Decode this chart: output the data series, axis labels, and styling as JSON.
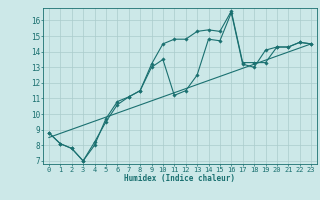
{
  "xlabel": "Humidex (Indice chaleur)",
  "background_color": "#cce8e8",
  "grid_color": "#aacccc",
  "line_color": "#1a7070",
  "xlim": [
    -0.5,
    23.5
  ],
  "ylim": [
    6.8,
    16.8
  ],
  "xticks": [
    0,
    1,
    2,
    3,
    4,
    5,
    6,
    7,
    8,
    9,
    10,
    11,
    12,
    13,
    14,
    15,
    16,
    17,
    18,
    19,
    20,
    21,
    22,
    23
  ],
  "yticks": [
    7,
    8,
    9,
    10,
    11,
    12,
    13,
    14,
    15,
    16
  ],
  "line1_x": [
    0,
    1,
    2,
    3,
    4,
    5,
    6,
    7,
    8,
    9,
    10,
    11,
    12,
    13,
    14,
    15,
    16,
    17,
    18,
    19,
    20,
    21,
    22,
    23
  ],
  "line1_y": [
    8.8,
    8.1,
    7.8,
    7.0,
    8.0,
    9.7,
    10.8,
    11.1,
    11.5,
    13.0,
    13.5,
    11.2,
    11.5,
    12.5,
    14.8,
    14.7,
    16.5,
    13.2,
    13.0,
    14.1,
    14.3,
    14.3,
    14.6,
    14.5
  ],
  "line2_x": [
    0,
    1,
    2,
    3,
    4,
    5,
    6,
    7,
    8,
    9,
    10,
    11,
    12,
    13,
    14,
    15,
    16,
    17,
    18,
    19,
    20,
    21,
    22,
    23
  ],
  "line2_y": [
    8.8,
    8.1,
    7.8,
    7.0,
    8.2,
    9.5,
    10.6,
    11.1,
    11.5,
    13.2,
    14.5,
    14.8,
    14.8,
    15.3,
    15.4,
    15.3,
    16.6,
    13.3,
    13.3,
    13.3,
    14.3,
    14.3,
    14.6,
    14.5
  ],
  "line3_x": [
    0,
    23
  ],
  "line3_y": [
    8.5,
    14.5
  ]
}
